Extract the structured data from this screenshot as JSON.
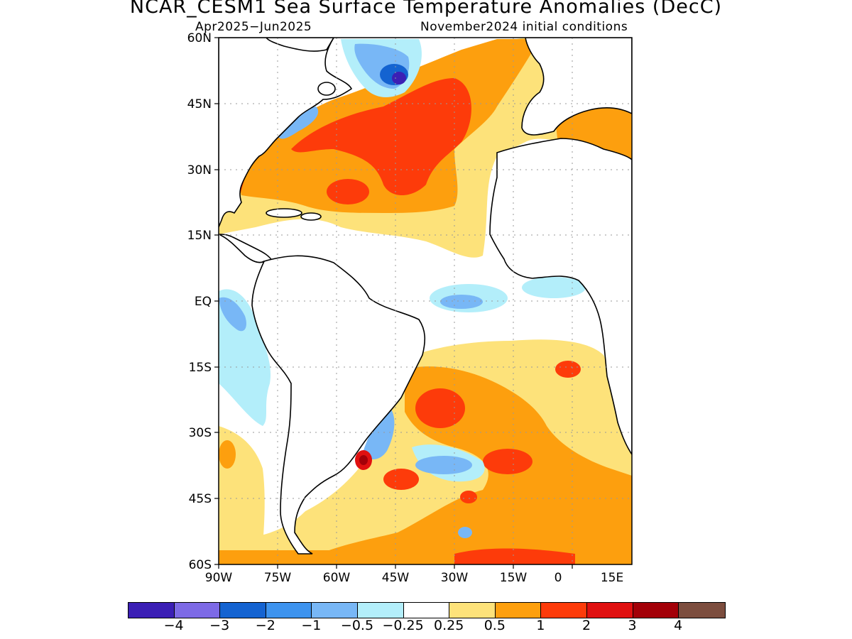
{
  "map": {
    "title": "NCAR_CESM1 Sea Surface Temperature Anomalies (DecC)",
    "season": "Apr2025−Jun2025",
    "init": "November2024 initial conditions",
    "lat_labels": [
      "60N",
      "45N",
      "30N",
      "15N",
      "EQ",
      "15S",
      "30S",
      "45S",
      "60S"
    ],
    "lon_labels": [
      "90W",
      "75W",
      "60W",
      "45W",
      "30W",
      "15W",
      "0",
      "15E"
    ],
    "lat_range": [
      -60,
      60
    ],
    "lon_range": [
      -90,
      15
    ],
    "grid": true
  },
  "colorbar": {
    "colors": [
      "#3b1fb5",
      "#7d6ae6",
      "#1463d1",
      "#3d93ee",
      "#78b7f6",
      "#b3eefa",
      "#ffffff",
      "#fde27a",
      "#fd9f0e",
      "#fd3b0a",
      "#e01010",
      "#a30008",
      "#7c4d3e"
    ],
    "labels": [
      "−4",
      "−3",
      "−2",
      "−1",
      "−0.5",
      "−0.25",
      "0.25",
      "0.5",
      "1",
      "2",
      "3",
      "4"
    ]
  }
}
